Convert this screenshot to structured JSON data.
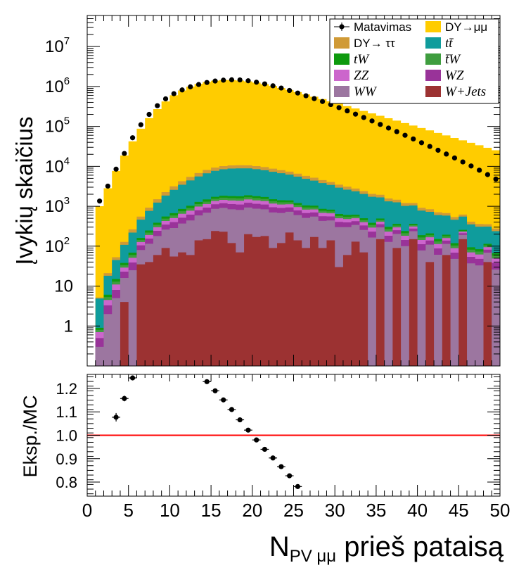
{
  "chart_data": [
    {
      "type": "area",
      "panel": "main",
      "ylabel": "Įvykių skaičius",
      "yscale": "log",
      "ylim": [
        0.1,
        60000000
      ],
      "xlim": [
        0,
        50
      ],
      "yticks": [
        {
          "v": 1,
          "label": "1",
          "sup": ""
        },
        {
          "v": 10,
          "label": "10",
          "sup": ""
        },
        {
          "v": 100,
          "label": "10",
          "sup": "2"
        },
        {
          "v": 1000,
          "label": "10",
          "sup": "3"
        },
        {
          "v": 10000,
          "label": "10",
          "sup": "4"
        },
        {
          "v": 100000,
          "label": "10",
          "sup": "5"
        },
        {
          "v": 1000000,
          "label": "10",
          "sup": "6"
        },
        {
          "v": 10000000,
          "label": "10",
          "sup": "7"
        }
      ],
      "legend": {
        "position": "top-right",
        "entries": [
          {
            "label": "Matavimas",
            "kind": "marker",
            "color": "#000000",
            "italic": false
          },
          {
            "label": "DY→μμ",
            "kind": "fill",
            "color": "#ffcc00",
            "italic": false
          },
          {
            "label": "DY→ ττ",
            "kind": "fill",
            "color": "#d09a36",
            "italic": false
          },
          {
            "label": "tt̄",
            "kind": "fill",
            "color": "#0f9c9c",
            "italic": true
          },
          {
            "label": "tW",
            "kind": "fill",
            "color": "#0e9a0e",
            "italic": true
          },
          {
            "label": "t̄W",
            "kind": "fill",
            "color": "#3f9d3f",
            "italic": true
          },
          {
            "label": "ZZ",
            "kind": "fill",
            "color": "#cc66cc",
            "italic": true
          },
          {
            "label": "WZ",
            "kind": "fill",
            "color": "#993399",
            "italic": true
          },
          {
            "label": "WW",
            "kind": "fill",
            "color": "#9c76a0",
            "italic": true
          },
          {
            "label": "W+Jets",
            "kind": "fill",
            "color": "#9c3232",
            "italic": true
          }
        ]
      },
      "bin_edges_start": 1,
      "bin_width": 1,
      "series": [
        {
          "name": "W+Jets",
          "color": "#9c3232",
          "values": [
            0,
            0,
            0,
            4,
            0,
            35,
            40,
            60,
            90,
            55,
            70,
            60,
            140,
            150,
            240,
            230,
            120,
            70,
            200,
            170,
            180,
            90,
            120,
            220,
            140,
            90,
            170,
            90,
            140,
            30,
            60,
            130,
            70,
            0,
            150,
            0,
            90,
            0,
            150,
            0,
            40,
            0,
            60,
            0,
            150,
            0,
            0,
            40,
            0
          ]
        },
        {
          "name": "WW",
          "color": "#9c76a0",
          "values": [
            0.3,
            2,
            5,
            12,
            25,
            45,
            75,
            120,
            170,
            230,
            300,
            380,
            450,
            540,
            620,
            680,
            720,
            740,
            730,
            700,
            660,
            610,
            560,
            510,
            460,
            420,
            380,
            340,
            300,
            270,
            240,
            210,
            185,
            165,
            145,
            128,
            113,
            100,
            88,
            78,
            69,
            61,
            54,
            48,
            42,
            37,
            33,
            29,
            26
          ]
        },
        {
          "name": "WZ",
          "color": "#993399",
          "values": [
            0.2,
            1.3,
            3,
            7,
            14,
            25,
            40,
            62,
            88,
            115,
            145,
            175,
            205,
            235,
            260,
            280,
            290,
            295,
            290,
            280,
            265,
            245,
            225,
            205,
            185,
            165,
            148,
            133,
            118,
            105,
            94,
            84,
            75,
            67,
            60,
            54,
            48,
            43,
            38,
            34,
            30,
            27,
            24,
            21,
            19,
            17,
            15,
            13,
            12
          ]
        },
        {
          "name": "ZZ",
          "color": "#cc66cc",
          "values": [
            0.2,
            1.2,
            3,
            6,
            12,
            22,
            36,
            56,
            80,
            105,
            132,
            160,
            188,
            214,
            236,
            252,
            262,
            266,
            262,
            252,
            238,
            220,
            202,
            184,
            166,
            148,
            133,
            119,
            106,
            95,
            85,
            76,
            68,
            61,
            55,
            49,
            44,
            39,
            35,
            31,
            28,
            25,
            22,
            20,
            18,
            16,
            14,
            12.5,
            11
          ]
        },
        {
          "name": "t̄W",
          "color": "#3f9d3f",
          "values": [
            0.1,
            0.8,
            2,
            4.5,
            9,
            17,
            28,
            44,
            63,
            84,
            106,
            128,
            150,
            170,
            186,
            198,
            204,
            206,
            202,
            194,
            182,
            168,
            154,
            140,
            126,
            113,
            101,
            90,
            80,
            71,
            64,
            57,
            51,
            46,
            41,
            37,
            33,
            29,
            26,
            23,
            21,
            19,
            17,
            15,
            13.5,
            12,
            11,
            10,
            9
          ]
        },
        {
          "name": "tW",
          "color": "#0e9a0e",
          "values": [
            0.1,
            0.8,
            2,
            4.5,
            9,
            17,
            28,
            44,
            63,
            84,
            106,
            128,
            150,
            170,
            186,
            198,
            204,
            206,
            202,
            194,
            182,
            168,
            154,
            140,
            126,
            113,
            101,
            90,
            80,
            71,
            64,
            57,
            51,
            46,
            41,
            37,
            33,
            29,
            26,
            23,
            21,
            19,
            17,
            15,
            13.5,
            12,
            11,
            10,
            9
          ]
        },
        {
          "name": "tt̄",
          "color": "#0f9c9c",
          "values": [
            4,
            12,
            30,
            70,
            150,
            300,
            520,
            850,
            1300,
            1900,
            2600,
            3400,
            4300,
            5200,
            6000,
            6600,
            7000,
            7100,
            7000,
            6700,
            6300,
            5800,
            5300,
            4800,
            4300,
            3800,
            3350,
            2950,
            2600,
            2280,
            2000,
            1750,
            1530,
            1340,
            1170,
            1020,
            890,
            780,
            680,
            590,
            515,
            450,
            390,
            340,
            295,
            257,
            224,
            195,
            170
          ]
        },
        {
          "name": "DY→ ττ",
          "color": "#d09a36",
          "values": [
            0.3,
            3,
            8,
            20,
            45,
            90,
            160,
            260,
            400,
            580,
            780,
            1000,
            1220,
            1420,
            1580,
            1690,
            1750,
            1760,
            1730,
            1660,
            1560,
            1440,
            1310,
            1180,
            1050,
            930,
            820,
            720,
            630,
            550,
            480,
            420,
            365,
            318,
            277,
            241,
            210,
            183,
            159,
            138,
            120,
            104,
            91,
            79,
            69,
            60,
            52,
            45,
            39
          ]
        },
        {
          "name": "DY→μμ",
          "color": "#ffcc00",
          "values": [
            1000,
            2800,
            7600,
            18500,
            42000,
            87000,
            160000,
            270000,
            420000,
            600000,
            790000,
            980000,
            1150000,
            1290000,
            1390000,
            1440000,
            1440000,
            1400000,
            1330000,
            1240000,
            1130000,
            1020000,
            910000,
            810000,
            715000,
            628000,
            550000,
            480000,
            420000,
            366000,
            319000,
            278000,
            242000,
            210000,
            183000,
            159000,
            138000,
            120000,
            104000,
            90500,
            78500,
            68000,
            59000,
            51000,
            44300,
            38400,
            33300,
            28800,
            25000
          ]
        }
      ],
      "data_series": {
        "name": "Matavimas",
        "x": [
          1.5,
          2.5,
          3.5,
          4.5,
          5.5,
          6.5,
          7.5,
          8.5,
          9.5,
          10.5,
          11.5,
          12.5,
          13.5,
          14.5,
          15.5,
          16.5,
          17.5,
          18.5,
          19.5,
          20.5,
          21.5,
          22.5,
          23.5,
          24.5,
          25.5,
          26.5,
          27.5,
          28.5,
          29.5,
          30.5,
          31.5,
          32.5,
          33.5,
          34.5,
          35.5,
          36.5,
          37.5,
          38.5,
          39.5,
          40.5,
          41.5,
          42.5,
          43.5,
          44.5,
          45.5,
          46.5,
          47.5,
          48.5,
          49.5
        ],
        "y": [
          1350,
          3200,
          8500,
          21000,
          52000,
          110000,
          200000,
          330000,
          490000,
          660000,
          820000,
          980000,
          1120000,
          1260000,
          1370000,
          1440000,
          1470000,
          1460000,
          1390000,
          1280000,
          1160000,
          1040000,
          915000,
          795000,
          685000,
          585000,
          497000,
          420000,
          353000,
          295000,
          245000,
          203000,
          167000,
          137000,
          112000,
          91000,
          74000,
          60000,
          48500,
          39000,
          31500,
          25300,
          20300,
          16200,
          12900,
          10200,
          8000,
          6200,
          4800
        ]
      }
    },
    {
      "type": "scatter",
      "panel": "ratio",
      "ylabel": "Eksp./MC",
      "xlabel": "N",
      "xlabel_sub": "PV μμ",
      "xlabel_suffix": " prieš pataisą",
      "ylim": [
        0.74,
        1.26
      ],
      "xlim": [
        0,
        50
      ],
      "reference_line": 1.0,
      "reference_color": "#ff0000",
      "yticks": [
        "0.8",
        "0.9",
        "1.0",
        "1.1",
        "1.2"
      ],
      "xticks": [
        "0",
        "5",
        "10",
        "15",
        "20",
        "25",
        "30",
        "35",
        "40",
        "45",
        "50"
      ],
      "x": [
        3.5,
        4.5,
        5.5,
        14.5,
        15.5,
        16.5,
        17.5,
        18.5,
        19.5,
        20.5,
        21.5,
        22.5,
        23.5,
        24.5,
        25.5
      ],
      "y": [
        1.077,
        1.157,
        1.245,
        1.229,
        1.19,
        1.151,
        1.11,
        1.066,
        1.022,
        0.98,
        0.94,
        0.903,
        0.866,
        0.827,
        0.781
      ],
      "yerr": [
        0.018,
        0.012,
        0.005,
        0.002,
        0.002,
        0.002,
        0.002,
        0.002,
        0.002,
        0.002,
        0.002,
        0.002,
        0.002,
        0.002,
        0.002
      ]
    }
  ]
}
